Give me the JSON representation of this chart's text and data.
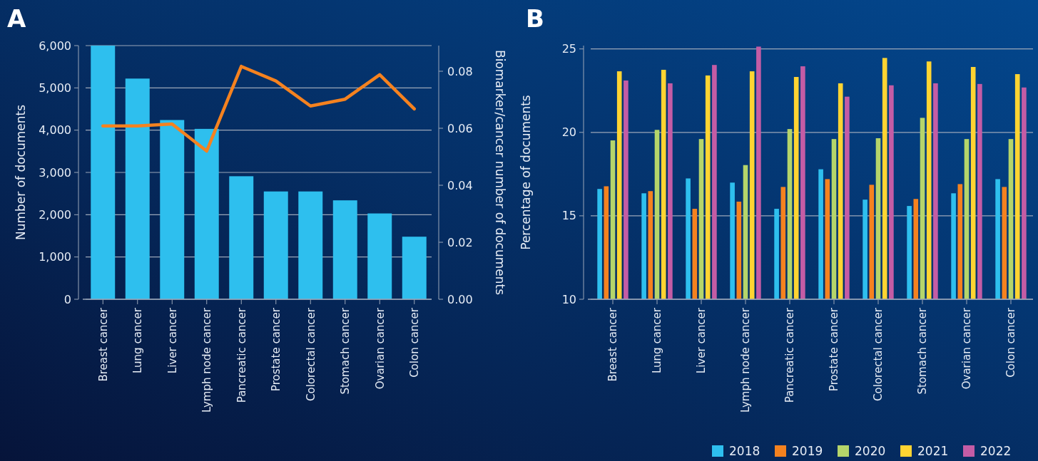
{
  "chart_data": [
    {
      "type": "bar",
      "title": "A",
      "categories": [
        "Breast cancer",
        "Lung cancer",
        "Liver cancer",
        "Lymph node cancer",
        "Pancreatic cancer",
        "Prostate cancer",
        "Colorectal cancer",
        "Stomach cancer",
        "Ovarian cancer",
        "Colon cancer"
      ],
      "series": [
        {
          "color": "#2ebfee",
          "values": [
            6000,
            5220,
            4240,
            4030,
            2910,
            2550,
            2550,
            2340,
            2030,
            1480
          ]
        },
        {
          "type": "line",
          "axis": "y2",
          "color": "#f5821f",
          "values": [
            0.0608,
            0.0608,
            0.0615,
            0.052,
            0.0817,
            0.0766,
            0.0678,
            0.0702,
            0.0788,
            0.0668
          ]
        }
      ],
      "ylabel": "Number of documents",
      "y2label": "Biomarker/cancer number of documents",
      "ylim": [
        0,
        6000
      ],
      "yticks": [
        0,
        {
          "value": 1000,
          "label": "1,000"
        },
        {
          "value": 2000,
          "label": "2,000"
        },
        {
          "value": 3000,
          "label": "3,000"
        },
        {
          "value": 4000,
          "label": "4,000"
        },
        {
          "value": 5000,
          "label": "5,000"
        },
        {
          "value": 6000,
          "label": "6,000"
        }
      ],
      "y2lim": [
        0,
        0.089
      ],
      "y2ticks": [
        {
          "value": 0,
          "label": "0.00"
        },
        {
          "value": 0.02,
          "label": "0.02"
        },
        {
          "value": 0.04,
          "label": "0.04"
        },
        {
          "value": 0.06,
          "label": "0.06"
        },
        {
          "value": 0.08,
          "label": "0.08"
        }
      ],
      "grid": "y"
    },
    {
      "type": "bar",
      "title": "B",
      "categories": [
        "Breast cancer",
        "Lung cancer",
        "Liver cancer",
        "Lymph node cancer",
        "Pancreatic cancer",
        "Prostate cancer",
        "Colorectal cancer",
        "Stomach cancer",
        "Ovarian cancer",
        "Colon cancer"
      ],
      "series": [
        {
          "name": "2018",
          "color": "#2ebfee",
          "values": [
            16.61,
            16.35,
            17.24,
            16.99,
            15.42,
            17.79,
            15.97,
            15.59,
            16.35,
            17.2
          ]
        },
        {
          "name": "2019",
          "color": "#f5821f",
          "values": [
            16.77,
            16.48,
            15.42,
            15.85,
            16.73,
            17.2,
            16.86,
            16.01,
            16.9,
            16.73
          ]
        },
        {
          "name": "2020",
          "color": "#b5d56a",
          "values": [
            19.52,
            20.15,
            19.6,
            18.04,
            20.2,
            19.6,
            19.65,
            20.87,
            19.6,
            19.6
          ]
        },
        {
          "name": "2021",
          "color": "#ffd432",
          "values": [
            23.66,
            23.75,
            23.41,
            23.66,
            23.32,
            22.94,
            24.46,
            24.25,
            23.92,
            23.49
          ]
        },
        {
          "name": "2022",
          "color": "#c45ca5",
          "values": [
            23.11,
            22.94,
            24.04,
            25.14,
            23.96,
            22.14,
            22.82,
            22.94,
            22.9,
            22.69
          ]
        }
      ],
      "ylabel": "Percentage of documents",
      "ylim": [
        10,
        25.2
      ],
      "yticks": [
        10,
        15,
        20,
        25
      ],
      "grid": "y",
      "legend": "bottom"
    }
  ]
}
